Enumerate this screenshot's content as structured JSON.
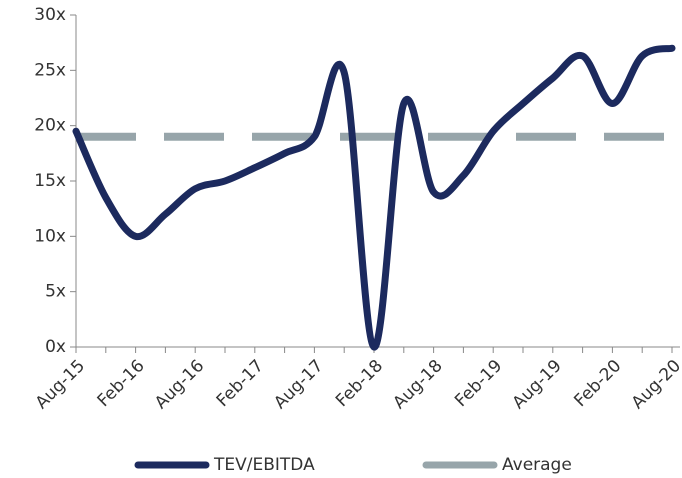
{
  "chart_data": {
    "type": "line",
    "categories": [
      "Aug-15",
      null,
      "Feb-16",
      null,
      "Aug-16",
      null,
      "Feb-17",
      null,
      "Aug-17",
      null,
      "Feb-18",
      null,
      "Aug-18",
      null,
      "Feb-19",
      null,
      "Aug-19",
      null,
      "Feb-20",
      null,
      "Aug-20"
    ],
    "series": [
      {
        "name": "TEV/EBITDA",
        "color": "#1c2a5e",
        "style": "solid",
        "values": [
          19.5,
          13.5,
          10,
          12,
          14.3,
          15,
          16.2,
          17.5,
          19,
          24.8,
          0,
          22,
          14,
          15.5,
          19.5,
          22,
          24.3,
          26.3,
          22,
          26.3,
          27
        ]
      },
      {
        "name": "Average",
        "color": "#97a5aa",
        "style": "dashed",
        "values": [
          19,
          19,
          19,
          19,
          19,
          19,
          19,
          19,
          19,
          19,
          19,
          19,
          19,
          19,
          19,
          19,
          19,
          19,
          19,
          19,
          19
        ]
      }
    ],
    "ylim": [
      0,
      30
    ],
    "yticks": [
      {
        "value": 0,
        "label": "0x"
      },
      {
        "value": 5,
        "label": "5x"
      },
      {
        "value": 10,
        "label": "10x"
      },
      {
        "value": 15,
        "label": "15x"
      },
      {
        "value": 20,
        "label": "20x"
      },
      {
        "value": 25,
        "label": "25x"
      },
      {
        "value": 30,
        "label": "30x"
      }
    ],
    "legend": "bottom"
  }
}
